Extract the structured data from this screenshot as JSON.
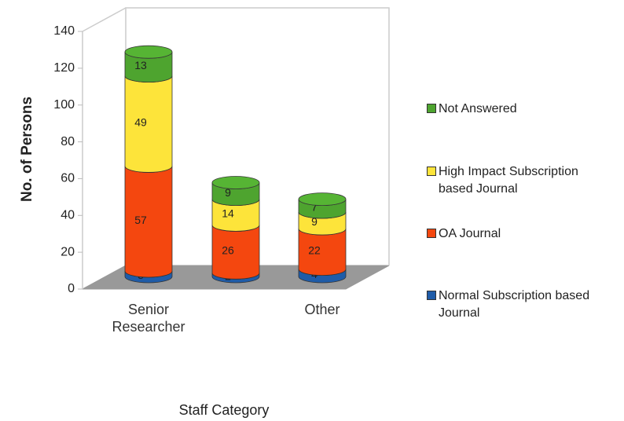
{
  "chart_data": {
    "type": "bar3d_stacked",
    "x_label": "Staff Category",
    "y_label": "No. of Persons",
    "categories": [
      "Senior Researcher",
      null,
      "Other"
    ],
    "series": [
      {
        "name": "Normal Subscription  based Journal",
        "color": "#1f5ca8",
        "values": [
          3,
          2,
          4
        ]
      },
      {
        "name": "OA Journal",
        "color": "#f4470f",
        "values": [
          57,
          26,
          22
        ]
      },
      {
        "name": "High Impact Subscription based Journal",
        "color": "#fde43a",
        "values": [
          49,
          14,
          9
        ]
      },
      {
        "name": "Not Answered",
        "color": "#4ea42f",
        "values": [
          13,
          9,
          7
        ]
      }
    ],
    "ylim": [
      0,
      140
    ],
    "yticks": [
      0,
      20,
      40,
      60,
      80,
      100,
      120,
      140
    ],
    "grid": false
  }
}
